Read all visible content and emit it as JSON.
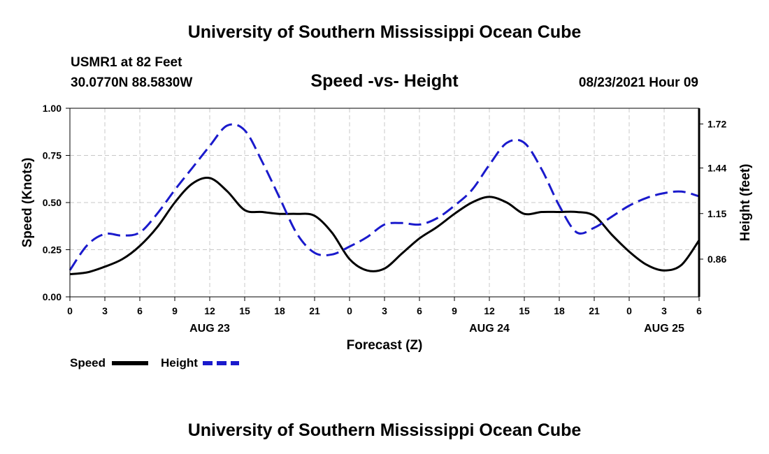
{
  "header": {
    "title_top": "University of Southern Mississippi Ocean Cube",
    "station": "USMR1 at 82 Feet",
    "coords": "30.0770N  88.5830W",
    "subtitle": "Speed -vs- Height",
    "timestamp": "08/23/2021 Hour 09"
  },
  "footer": {
    "title_bottom": "University of Southern Mississippi Ocean Cube"
  },
  "legend": {
    "speed_label": "Speed",
    "height_label": "Height"
  },
  "colors": {
    "speed": "#000000",
    "height": "#1a1acc",
    "grid": "#c8c8c8"
  },
  "chart_data": {
    "type": "line",
    "title": "Speed -vs- Height",
    "xlabel": "Forecast (Z)",
    "ylabel_left": "Speed (Knots)",
    "ylabel_right": "Height (feet)",
    "x_range": [
      0,
      54
    ],
    "x_ticks": [
      0,
      3,
      6,
      9,
      12,
      15,
      18,
      21,
      24,
      27,
      30,
      33,
      36,
      39,
      42,
      45,
      48,
      51,
      54
    ],
    "x_tick_labels": [
      "0",
      "3",
      "6",
      "9",
      "12",
      "15",
      "18",
      "21",
      "0",
      "3",
      "6",
      "9",
      "12",
      "15",
      "18",
      "21",
      "0",
      "3",
      "6"
    ],
    "day_labels": [
      {
        "label": "AUG 23",
        "x": 12
      },
      {
        "label": "AUG 24",
        "x": 36
      },
      {
        "label": "AUG 25",
        "x": 51
      }
    ],
    "y_left": {
      "range": [
        0,
        1
      ],
      "ticks": [
        0,
        0.25,
        0.5,
        0.75,
        1
      ],
      "tick_labels": [
        "0.00",
        "0.25",
        "0.50",
        "0.75",
        "1.00"
      ]
    },
    "y_right": {
      "range": [
        0.62,
        1.82
      ],
      "ticks": [
        0.86,
        1.15,
        1.44,
        1.72
      ],
      "tick_labels": [
        "0.86",
        "1.15",
        "1.44",
        "1.72"
      ]
    },
    "grid": true,
    "legend_position": "bottom-left",
    "series": [
      {
        "name": "Speed",
        "axis": "left",
        "style": "solid",
        "x": [
          0,
          1.5,
          3,
          4.5,
          6,
          7.5,
          9,
          10.5,
          12,
          13.5,
          15,
          16.5,
          18,
          19.5,
          21,
          22.5,
          24,
          25.5,
          27,
          28.5,
          30,
          31.5,
          33,
          34.5,
          36,
          37.5,
          39,
          40.5,
          42,
          43.5,
          45,
          46.5,
          48,
          49.5,
          51,
          52.5,
          54
        ],
        "values": [
          0.12,
          0.13,
          0.16,
          0.2,
          0.27,
          0.37,
          0.5,
          0.6,
          0.63,
          0.56,
          0.46,
          0.45,
          0.44,
          0.44,
          0.43,
          0.34,
          0.2,
          0.14,
          0.15,
          0.23,
          0.31,
          0.37,
          0.44,
          0.5,
          0.53,
          0.5,
          0.44,
          0.45,
          0.45,
          0.45,
          0.43,
          0.33,
          0.24,
          0.17,
          0.14,
          0.17,
          0.3
        ]
      },
      {
        "name": "Height",
        "axis": "right",
        "style": "dashed",
        "x": [
          0,
          1.5,
          3,
          4.5,
          6,
          7.5,
          9,
          10.5,
          12,
          13.5,
          15,
          16.5,
          18,
          19.5,
          21,
          22.5,
          24,
          25.5,
          27,
          28.5,
          30,
          31.5,
          33,
          34.5,
          36,
          37.5,
          39,
          40.5,
          42,
          43.5,
          45,
          46.5,
          48,
          49.5,
          51,
          52.5,
          54
        ],
        "values": [
          0.79,
          0.95,
          1.02,
          1.01,
          1.03,
          1.15,
          1.3,
          1.44,
          1.58,
          1.71,
          1.68,
          1.48,
          1.25,
          1.02,
          0.9,
          0.89,
          0.94,
          1.0,
          1.08,
          1.09,
          1.08,
          1.12,
          1.2,
          1.3,
          1.46,
          1.6,
          1.6,
          1.43,
          1.2,
          1.03,
          1.06,
          1.13,
          1.2,
          1.25,
          1.28,
          1.29,
          1.26
        ]
      }
    ]
  }
}
